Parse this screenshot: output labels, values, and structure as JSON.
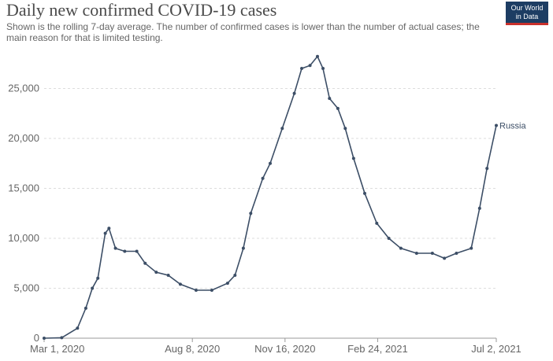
{
  "chart_data": {
    "type": "line",
    "title": "Daily new confirmed COVID-19 cases",
    "subtitle": [
      "Shown is the rolling 7-day average. The number of confirmed cases is lower than the number of actual cases; the",
      "main reason for that is limited testing."
    ],
    "logo": [
      "Our World",
      "in Data"
    ],
    "x": [
      "2020-03-01",
      "2020-03-20",
      "2020-04-06",
      "2020-04-15",
      "2020-04-22",
      "2020-04-28",
      "2020-05-06",
      "2020-05-10",
      "2020-05-17",
      "2020-05-27",
      "2020-06-09",
      "2020-06-18",
      "2020-06-30",
      "2020-07-13",
      "2020-07-26",
      "2020-08-12",
      "2020-08-29",
      "2020-09-15",
      "2020-09-23",
      "2020-10-02",
      "2020-10-10",
      "2020-10-23",
      "2020-10-31",
      "2020-11-13",
      "2020-11-26",
      "2020-12-04",
      "2020-12-13",
      "2020-12-21",
      "2020-12-27",
      "2021-01-03",
      "2021-01-12",
      "2021-01-20",
      "2021-01-29",
      "2021-02-10",
      "2021-02-23",
      "2021-03-08",
      "2021-03-21",
      "2021-04-07",
      "2021-04-24",
      "2021-05-07",
      "2021-05-20",
      "2021-06-05",
      "2021-06-14",
      "2021-06-22",
      "2021-07-02"
    ],
    "series": [
      {
        "name": "Russia",
        "color": "#3c4e66",
        "values": [
          0,
          50,
          1000,
          3000,
          5000,
          6000,
          10500,
          11000,
          9000,
          8700,
          8700,
          7500,
          6600,
          6300,
          5400,
          4800,
          4800,
          5500,
          6300,
          9000,
          12500,
          16000,
          17500,
          21000,
          24500,
          27000,
          27300,
          28200,
          27000,
          24000,
          23000,
          21000,
          18000,
          14500,
          11500,
          10000,
          9000,
          8500,
          8500,
          8000,
          8500,
          9000,
          13000,
          17000,
          21300
        ]
      }
    ],
    "xlim": [
      "2020-03-01",
      "2021-07-02"
    ],
    "xticks": [
      {
        "value": "2020-03-01",
        "label": "Mar 1, 2020"
      },
      {
        "value": "2020-08-08",
        "label": "Aug 8, 2020"
      },
      {
        "value": "2020-11-16",
        "label": "Nov 16, 2020"
      },
      {
        "value": "2021-02-24",
        "label": "Feb 24, 2021"
      },
      {
        "value": "2021-07-02",
        "label": "Jul 2, 2021"
      }
    ],
    "ylim": [
      0,
      28500
    ],
    "yticks": [
      0,
      {
        "value": 5000,
        "label": "5,000"
      },
      {
        "value": 10000,
        "label": "10,000"
      },
      {
        "value": 15000,
        "label": "15,000"
      },
      {
        "value": 20000,
        "label": "20,000"
      },
      {
        "value": 25000,
        "label": "25,000"
      }
    ],
    "grid": true
  }
}
